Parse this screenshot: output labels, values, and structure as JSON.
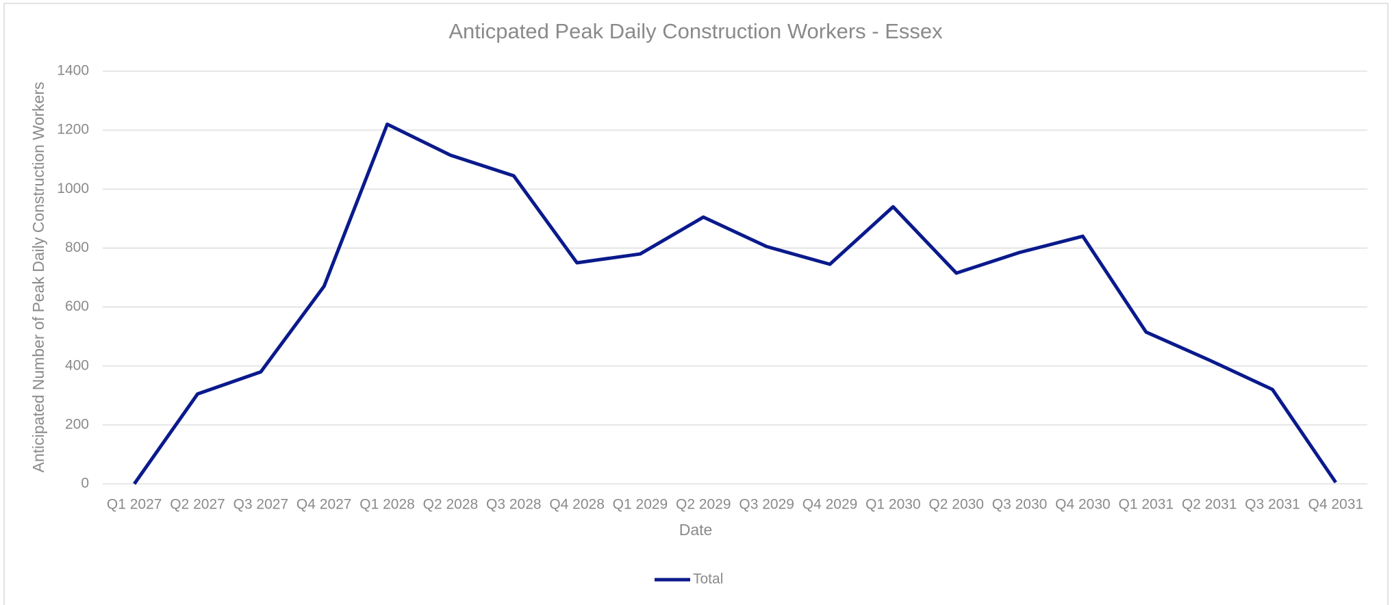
{
  "chart_data": {
    "type": "line",
    "title": "Anticpated Peak Daily Construction Workers - Essex",
    "x_label": "Date",
    "y_label": "Anticipated Number of Peak Daily Construction Workers",
    "categories": [
      "Q1 2027",
      "Q2 2027",
      "Q3 2027",
      "Q4 2027",
      "Q1 2028",
      "Q2 2028",
      "Q3 2028",
      "Q4 2028",
      "Q1 2029",
      "Q2 2029",
      "Q3 2029",
      "Q4 2029",
      "Q1 2030",
      "Q2 2030",
      "Q3 2030",
      "Q4 2030",
      "Q1 2031",
      "Q2 2031",
      "Q3 2031",
      "Q4 2031"
    ],
    "series": [
      {
        "name": "Total",
        "color": "#0a1a8c",
        "values": [
          0,
          305,
          380,
          670,
          1220,
          1115,
          1045,
          750,
          780,
          905,
          805,
          745,
          940,
          715,
          785,
          840,
          515,
          420,
          320,
          5
        ]
      }
    ],
    "ylim": [
      0,
      1400
    ],
    "yticks": [
      0,
      200,
      400,
      600,
      800,
      1000,
      1200,
      1400
    ],
    "grid": true,
    "legend": "bottom"
  }
}
